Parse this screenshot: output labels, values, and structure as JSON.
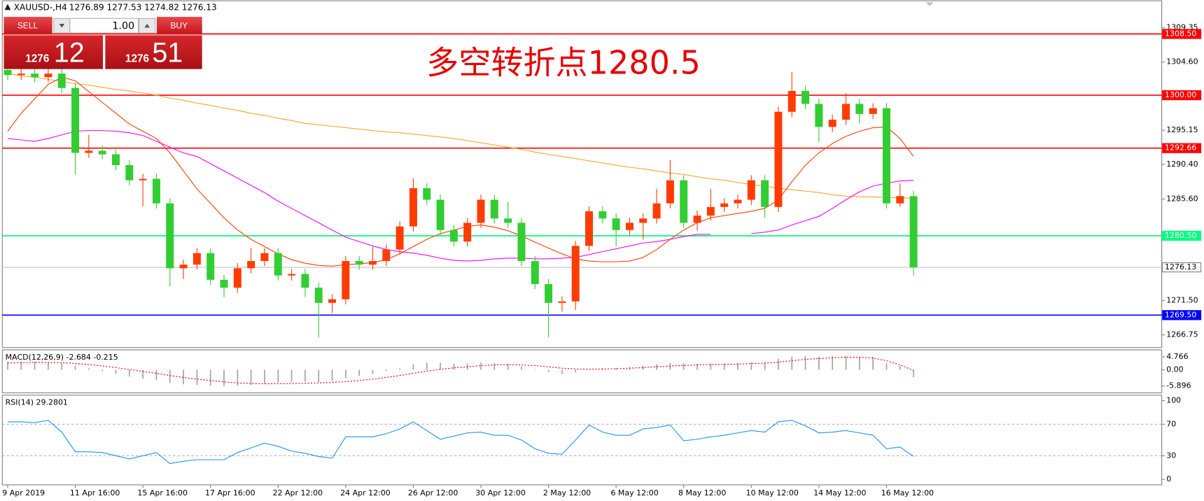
{
  "header": {
    "symbol": "XAUUSD-,H4",
    "ohlc": "1276.89 1277.53 1274.82 1276.13"
  },
  "trade_panel": {
    "sell": "SELL",
    "buy": "BUY",
    "lots": "1.00",
    "sell_price_big": "1276",
    "sell_price_small": "12",
    "buy_price_big": "1276",
    "buy_price_small": "51"
  },
  "chart_data": [
    {
      "type": "candlestick",
      "annotation": "多空转折点1280.5",
      "categories": [
        "9 Apr 2019",
        null,
        null,
        null,
        null,
        "11 Apr 16:00",
        null,
        null,
        null,
        null,
        "15 Apr 16:00",
        null,
        null,
        null,
        null,
        "17 Apr 16:00",
        null,
        null,
        null,
        null,
        "22 Apr 12:00",
        null,
        null,
        null,
        null,
        "24 Apr 12:00",
        null,
        null,
        null,
        null,
        "26 Apr 12:00",
        null,
        null,
        null,
        null,
        "30 Apr 12:00",
        null,
        null,
        null,
        null,
        "2 May 12:00",
        null,
        null,
        null,
        null,
        "6 May 12:00",
        null,
        null,
        null,
        null,
        "8 May 12:00",
        null,
        null,
        null,
        null,
        "10 May 12:00",
        null,
        null,
        null,
        null,
        "14 May 12:00",
        null,
        null,
        null,
        null,
        "16 May 12:00",
        null,
        null
      ],
      "candles": [
        [
          1303.5,
          1304.2,
          1302.1,
          1302.8
        ],
        [
          1302.8,
          1303.7,
          1302.1,
          1303
        ],
        [
          1303,
          1303.7,
          1301.8,
          1302.5
        ],
        [
          1302.5,
          1304.5,
          1301.8,
          1303
        ],
        [
          1303,
          1303.7,
          1300.3,
          1301
        ],
        [
          1301,
          1301.7,
          1289,
          1292
        ],
        [
          1292,
          1294.5,
          1291.3,
          1292.3
        ],
        [
          1292.3,
          1293,
          1291.1,
          1291.8
        ],
        [
          1291.8,
          1292.5,
          1289.6,
          1290.3
        ],
        [
          1290.3,
          1291,
          1287.5,
          1288.2
        ],
        [
          1288.2,
          1289.1,
          1284.6,
          1288.4
        ],
        [
          1288.4,
          1289.1,
          1284.3,
          1285
        ],
        [
          1285,
          1285.7,
          1273.5,
          1276
        ],
        [
          1276,
          1277.2,
          1274.5,
          1276.5
        ],
        [
          1276.5,
          1278.8,
          1275.8,
          1278.1
        ],
        [
          1278.1,
          1278.8,
          1273.7,
          1274.4
        ],
        [
          1274.4,
          1275.1,
          1272,
          1273.3
        ],
        [
          1273.3,
          1276.7,
          1272.6,
          1276
        ],
        [
          1276,
          1278.8,
          1275.3,
          1277
        ],
        [
          1277,
          1278.8,
          1276.3,
          1278.1
        ],
        [
          1278.1,
          1278.8,
          1274.3,
          1275
        ],
        [
          1275,
          1275.9,
          1274.3,
          1275.2
        ],
        [
          1275.2,
          1275.9,
          1272,
          1273.3
        ],
        [
          1273.3,
          1274,
          1266.4,
          1271.2
        ],
        [
          1271.2,
          1272.4,
          1269.8,
          1271.7
        ],
        [
          1271.7,
          1277.7,
          1271,
          1277
        ],
        [
          1277,
          1277.7,
          1275.8,
          1276.5
        ],
        [
          1276.5,
          1279,
          1275.8,
          1277
        ],
        [
          1277,
          1279.3,
          1276.3,
          1278.6
        ],
        [
          1278.6,
          1282.5,
          1277.9,
          1281.8
        ],
        [
          1281.8,
          1288.5,
          1281.1,
          1287.1
        ],
        [
          1287.1,
          1287.8,
          1284.8,
          1285.5
        ],
        [
          1285.5,
          1286.2,
          1280.6,
          1281.3
        ],
        [
          1281.3,
          1282,
          1279,
          1279.7
        ],
        [
          1279.7,
          1283,
          1279,
          1282.3
        ],
        [
          1282.3,
          1286.2,
          1281.6,
          1285.5
        ],
        [
          1285.5,
          1286.2,
          1282.2,
          1282.9
        ],
        [
          1282.9,
          1285.2,
          1281.6,
          1282.3
        ],
        [
          1282.3,
          1283,
          1276.3,
          1277
        ],
        [
          1277,
          1277.7,
          1273.1,
          1273.8
        ],
        [
          1273.8,
          1274.5,
          1266.4,
          1271.2
        ],
        [
          1271.2,
          1272.1,
          1270,
          1271.4
        ],
        [
          1271.4,
          1279.8,
          1270.2,
          1279.1
        ],
        [
          1279.1,
          1284.6,
          1278.4,
          1283.9
        ],
        [
          1283.9,
          1284.6,
          1282.2,
          1282.9
        ],
        [
          1282.9,
          1283.6,
          1279,
          1281.3
        ],
        [
          1281.3,
          1283,
          1280.6,
          1282.3
        ],
        [
          1282.3,
          1283.6,
          1280,
          1282.9
        ],
        [
          1282.9,
          1287,
          1282.2,
          1285
        ],
        [
          1285,
          1291,
          1284.3,
          1288.2
        ],
        [
          1288.2,
          1288.9,
          1281.6,
          1282.3
        ],
        [
          1282.3,
          1284,
          1281.2,
          1283.3
        ],
        [
          1283.3,
          1287,
          1282.6,
          1284.5
        ],
        [
          1284.5,
          1285.7,
          1283.8,
          1285
        ],
        [
          1285,
          1286.2,
          1284.3,
          1285.5
        ],
        [
          1285.5,
          1288.9,
          1284.8,
          1288.2
        ],
        [
          1288.2,
          1288.9,
          1283,
          1284.5
        ],
        [
          1284.5,
          1298.4,
          1283.8,
          1297.7
        ],
        [
          1297.7,
          1303.2,
          1297,
          1300.6
        ],
        [
          1300.6,
          1301.3,
          1298.1,
          1298.8
        ],
        [
          1298.8,
          1299.5,
          1293.5,
          1295.6
        ],
        [
          1295.6,
          1297.3,
          1294.9,
          1296.6
        ],
        [
          1296.6,
          1300.3,
          1295.9,
          1298.8
        ],
        [
          1298.8,
          1299.5,
          1296.1,
          1297.4
        ],
        [
          1297.4,
          1298.9,
          1296.7,
          1298.2
        ],
        [
          1298.2,
          1298.9,
          1284.3,
          1285
        ],
        [
          1285,
          1287.8,
          1284.5,
          1286
        ],
        [
          1286,
          1286.7,
          1275,
          1276.13
        ]
      ],
      "up_color": "#ff3c00",
      "down_color": "#32cd32",
      "series": [
        {
          "color": "#f5a623",
          "values": [
            1303,
            1302.7,
            1302.5,
            1302.2,
            1301.9,
            1301.6,
            1301.4,
            1301.1,
            1300.8,
            1300.6,
            1300.3,
            1300,
            1299.6,
            1299.3,
            1298.9,
            1298.6,
            1298.2,
            1297.9,
            1297.5,
            1297.2,
            1296.8,
            1296.5,
            1296.1,
            1295.9,
            1295.7,
            1295.5,
            1295.3,
            1295.1,
            1294.9,
            1294.8,
            1294.6,
            1294.4,
            1294.2,
            1294,
            1293.7,
            1293.4,
            1293.1,
            1292.8,
            1292.5,
            1292.1,
            1291.8,
            1291.5,
            1291.2,
            1290.9,
            1290.6,
            1290.3,
            1290,
            1289.8,
            1289.5,
            1289.2,
            1289,
            1288.7,
            1288.4,
            1288.2,
            1287.9,
            1287.6,
            1287.4,
            1287.1,
            1286.9,
            1286.7,
            1286.5,
            1286.2,
            1286,
            1285.9,
            1285.9,
            1285.8,
            1285.8,
            1285.7
          ]
        },
        {
          "color": "#ff3c00",
          "values": [
            1295,
            1297.5,
            1299.5,
            1301.5,
            1302.5,
            1302,
            1300.5,
            1299,
            1297.5,
            1296,
            1295,
            1294,
            1292,
            1289.5,
            1287,
            1285,
            1283,
            1281.3,
            1280,
            1279,
            1278,
            1277.2,
            1276.7,
            1276.4,
            1276.3,
            1276.5,
            1276.6,
            1276.8,
            1277.2,
            1278,
            1279,
            1280,
            1280.8,
            1281.3,
            1281.8,
            1282,
            1281.7,
            1281.2,
            1280.5,
            1279.6,
            1278.8,
            1278,
            1277.3,
            1277,
            1276.9,
            1276.9,
            1277,
            1277.5,
            1278.6,
            1280,
            1281.3,
            1282.3,
            1283,
            1283.3,
            1283.6,
            1283.9,
            1284.3,
            1285.5,
            1288,
            1290.3,
            1292,
            1293.3,
            1294.3,
            1295,
            1295.5,
            1295.6,
            1294,
            1291.5
          ]
        },
        {
          "color": "#ff00ff",
          "values": [
            1294,
            1293.8,
            1293.6,
            1294,
            1294.5,
            1295,
            1295.1,
            1295.1,
            1295,
            1294.8,
            1294.4,
            1293.6,
            1292.8,
            1292,
            1291.5,
            1290.5,
            1289.5,
            1288.5,
            1287.5,
            1286.5,
            1285.3,
            1284.3,
            1283.3,
            1282.3,
            1281.3,
            1280.3,
            1279.7,
            1279.1,
            1278.6,
            1278.3,
            1278.1,
            1277.8,
            1277.4,
            1277.1,
            1277,
            1277.1,
            1277.3,
            1277.4,
            1277.4,
            1277.3,
            1277.3,
            1277.4,
            1277.5,
            1277.9,
            1278.3,
            1278.7,
            1279.1,
            1279.5,
            1279.7,
            1280,
            1280.4,
            1280.7,
            1280.7,
            null,
            null,
            1280.8,
            1281,
            1281.3,
            1282,
            1282.6,
            1283.2,
            1284.3,
            1285.5,
            1286.6,
            1287.4,
            1287.8,
            1288.1,
            1288.2
          ]
        }
      ],
      "hlines": [
        {
          "value": 1308.5,
          "label": "1308.50",
          "color": "#ff0000"
        },
        {
          "value": 1300,
          "label": "1300.00",
          "color": "#ff0000"
        },
        {
          "value": 1292.66,
          "label": "1292.66",
          "color": "#ff0000"
        },
        {
          "value": 1280.5,
          "label": "1280.50",
          "color": "#00ff7f"
        },
        {
          "value": 1276.13,
          "label": "1276.13",
          "color": "#c0c0c0",
          "box_color": "#ffffff",
          "text_color": "#000000"
        },
        {
          "value": 1269.5,
          "label": "1269.50",
          "color": "#0000ff"
        }
      ],
      "ylim": [
        1265.0,
        1313.1
      ],
      "yticks": [
        {
          "value": 1309.35,
          "label": "1309.35"
        },
        {
          "value": 1304.6,
          "label": "1304.60"
        },
        {
          "value": 1295.15,
          "label": "1295.15"
        },
        {
          "value": 1290.4,
          "label": "1290.40"
        },
        {
          "value": 1285.6,
          "label": "1285.60"
        },
        {
          "value": 1271.5,
          "label": "1271.50"
        },
        {
          "value": 1266.75,
          "label": "1266.75"
        }
      ]
    },
    {
      "type": "macd",
      "label": "MACD(12,26,9) -2.684 -0.215",
      "histogram": [
        3,
        3,
        3,
        2.8,
        2.5,
        1.5,
        0.5,
        -0.5,
        -1.5,
        -2.5,
        -3.2,
        -3.8,
        -4.8,
        -5.3,
        -5.5,
        -5.8,
        -6,
        -5.8,
        -5.5,
        -5,
        -4.6,
        -4.4,
        -4.3,
        -4.5,
        -4,
        -3,
        -2.2,
        -1.5,
        -0.5,
        0.5,
        2,
        2.6,
        2.5,
        2.2,
        2.3,
        2.6,
        2.4,
        2.2,
        1.2,
        0.2,
        -0.8,
        -1.5,
        -1,
        0,
        0.5,
        0.6,
        1,
        1.5,
        2,
        2.5,
        2.3,
        2.2,
        2.3,
        2.4,
        2.5,
        2.8,
        2.7,
        4,
        4.8,
        5,
        4.8,
        4.9,
        5,
        4.8,
        4.7,
        2.5,
        1.5,
        -2.684
      ],
      "signal": [
        2.5,
        2.6,
        2.7,
        2.7,
        2.6,
        2.3,
        1.9,
        1.4,
        0.8,
        0.1,
        -0.6,
        -1.3,
        -2.1,
        -2.8,
        -3.4,
        -3.9,
        -4.4,
        -4.8,
        -5,
        -5.1,
        -5.1,
        -5,
        -4.9,
        -4.8,
        -4.6,
        -4.3,
        -3.9,
        -3.4,
        -2.8,
        -2.1,
        -1.3,
        -0.5,
        0.2,
        0.7,
        1.1,
        1.5,
        1.8,
        1.9,
        1.8,
        1.5,
        1.1,
        0.6,
        0.3,
        0.2,
        0.3,
        0.4,
        0.6,
        0.8,
        1.1,
        1.4,
        1.6,
        1.8,
        1.9,
        2,
        2.1,
        2.3,
        2.4,
        2.8,
        3.3,
        3.8,
        4.1,
        4.4,
        4.6,
        4.6,
        4.3,
        3.3,
        1.8,
        -0.215
      ],
      "histogram_color": "#a0a0a0",
      "signal_color": "#ff0000",
      "ylim": [
        -8.4,
        7.0
      ],
      "yticks": [
        4.766,
        {
          "value": 0,
          "label": "0.00"
        },
        -5.896
      ]
    },
    {
      "type": "line",
      "label": "RSI(14) 29.2801",
      "color": "#1e90ff",
      "values": [
        73,
        73,
        72,
        75,
        60,
        35,
        35,
        34,
        30,
        26,
        30,
        34,
        20,
        23,
        25,
        25,
        25,
        34,
        40,
        46,
        42,
        36,
        33,
        29,
        27,
        54,
        54,
        54,
        58,
        64,
        73,
        62,
        51,
        55,
        59,
        60,
        56,
        56,
        50,
        39,
        33,
        32,
        50,
        69,
        60,
        56,
        56,
        64,
        66,
        69,
        49,
        51,
        54,
        56,
        59,
        62,
        60,
        73,
        75,
        68,
        59,
        60,
        62,
        59,
        56,
        39,
        41,
        29.2801
      ],
      "ylim": [
        -7,
        106
      ],
      "yticks": [
        0,
        30,
        70,
        100
      ],
      "dashed_levels": [
        30,
        70
      ]
    }
  ]
}
